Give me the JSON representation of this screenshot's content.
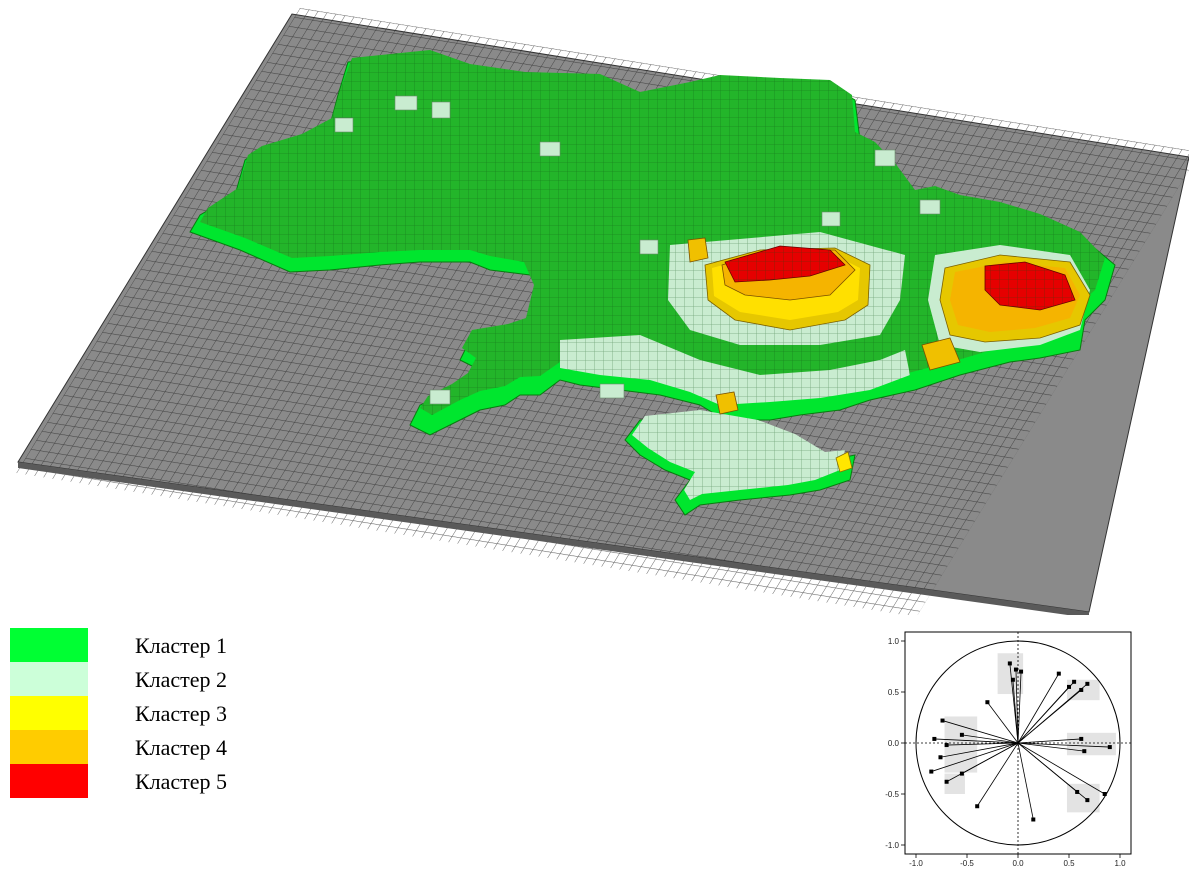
{
  "colors": {
    "base_top": "#8c8c8c",
    "base_side": "#5f5f5f",
    "mesh": "#2b2b2b",
    "cluster1": "#00ff33",
    "cluster1_top": "#23b52a",
    "cluster2": "#ccffd9",
    "cluster3": "#ffff00",
    "cluster4": "#ffcc00",
    "cluster5": "#ff0000"
  },
  "legend": {
    "items": [
      {
        "label": "Кластер 1",
        "color": "#00ff33"
      },
      {
        "label": "Кластер 2",
        "color": "#ccffd9"
      },
      {
        "label": "Кластер 3",
        "color": "#ffff00"
      },
      {
        "label": "Кластер 4",
        "color": "#ffcc00"
      },
      {
        "label": "Кластер 5",
        "color": "#ff0000"
      }
    ]
  },
  "pca_plot": {
    "y_ticks": [
      "1.0",
      "0.5",
      "0.0",
      "-0.5",
      "-1.0"
    ],
    "x_ticks": [
      "-1.0",
      "-0.5",
      "0.0",
      "0.5",
      "1.0"
    ],
    "loadings": [
      [
        -0.08,
        0.78
      ],
      [
        -0.02,
        0.72
      ],
      [
        0.03,
        0.7
      ],
      [
        -0.05,
        0.62
      ],
      [
        0.55,
        0.6
      ],
      [
        0.68,
        0.58
      ],
      [
        0.62,
        0.52
      ],
      [
        0.5,
        0.55
      ],
      [
        -0.74,
        0.22
      ],
      [
        -0.82,
        0.04
      ],
      [
        -0.7,
        -0.02
      ],
      [
        -0.76,
        -0.14
      ],
      [
        -0.55,
        0.08
      ],
      [
        -0.85,
        -0.28
      ],
      [
        -0.55,
        -0.3
      ],
      [
        0.62,
        0.04
      ],
      [
        0.9,
        -0.04
      ],
      [
        0.65,
        -0.08
      ],
      [
        0.58,
        -0.48
      ],
      [
        0.68,
        -0.56
      ],
      [
        0.85,
        -0.5
      ],
      [
        -0.4,
        -0.62
      ],
      [
        -0.7,
        -0.38
      ],
      [
        0.15,
        -0.75
      ],
      [
        0.4,
        0.68
      ],
      [
        -0.3,
        0.4
      ]
    ]
  }
}
